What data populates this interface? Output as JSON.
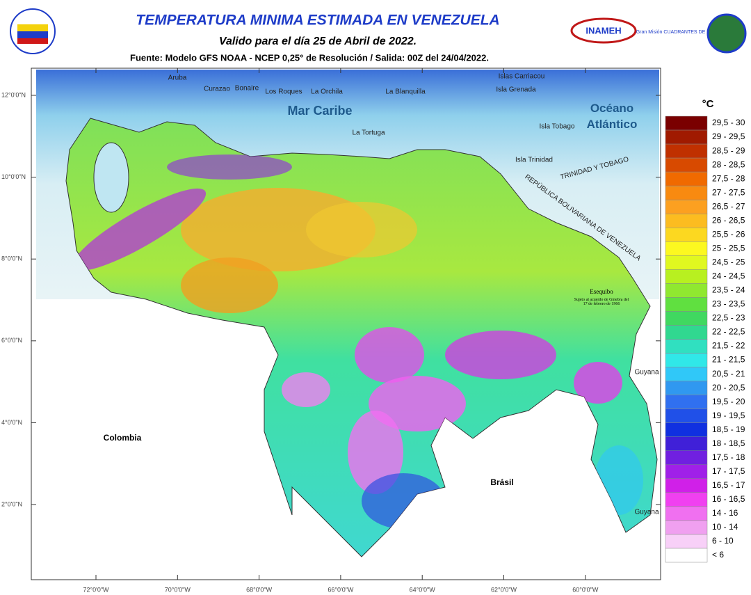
{
  "header": {
    "title": "TEMPERATURA MINIMA  ESTIMADA EN VENEZUELA",
    "subtitle": "Valido para el día 25 de Abril de 2022.",
    "source": "Fuente: Modelo GFS NOAA - NCEP 0,25° de Resolución / Salida: 00Z del 24/04/2022.",
    "logo_left": "INAMEH",
    "logo_right": "Gran Misión CUADRANTES DE PAZ"
  },
  "map": {
    "lat_ticks": [
      "12°0'0\"N",
      "10°0'0\"N",
      "8°0'0\"N",
      "6°0'0\"N",
      "4°0'0\"N",
      "2°0'0\"N"
    ],
    "lon_ticks": [
      "72°0'0\"W",
      "70°0'0\"W",
      "68°0'0\"W",
      "66°0'0\"W",
      "64°0'0\"W",
      "62°0'0\"W",
      "60°0'0\"W"
    ],
    "labels": {
      "aruba": "Aruba",
      "curazao": "Curazao",
      "bonaire": "Bonaire",
      "los_roques": "Los Roques",
      "la_orchila": "La Orchila",
      "la_blanquilla": "La Blanquilla",
      "carriacou": "Islas Carriacou",
      "grenada": "Isla Grenada",
      "mar_caribe": "Mar Caribe",
      "oceano": "Océano Atlántico",
      "tobago": "Isla Tobago",
      "trinidad": "Isla Trinidad",
      "tortuga": "La Tortuga",
      "tyt": "TRINIDAD Y TOBAGO",
      "rbv": "REPÚBLICA BOLIVARIANA DE VENEZUELA",
      "esequibo": "Esequibo",
      "esequibo_note": "Sujeto al acuerdo de Ginebra del 17 de febrero de 1966",
      "guyana1": "Guyana",
      "guyana2": "Guyana",
      "colombia": "Colombia",
      "brasil": "Brásil"
    }
  },
  "legend": {
    "unit": "°C",
    "items": [
      {
        "label": "29,5 - 30",
        "color": "#7a0000"
      },
      {
        "label": "29 - 29,5",
        "color": "#a01a00"
      },
      {
        "label": "28,5 - 29",
        "color": "#c03000"
      },
      {
        "label": "28 - 28,5",
        "color": "#d84a00"
      },
      {
        "label": "27,5 - 28",
        "color": "#f06a00"
      },
      {
        "label": "27 - 27,5",
        "color": "#f88a10"
      },
      {
        "label": "26,5 - 27",
        "color": "#fca020"
      },
      {
        "label": "26 - 26,5",
        "color": "#fcbc20"
      },
      {
        "label": "25,5 - 26",
        "color": "#fcd820"
      },
      {
        "label": "25 - 25,5",
        "color": "#fcf820"
      },
      {
        "label": "24,5 - 25",
        "color": "#e0f820"
      },
      {
        "label": "24 - 24,5",
        "color": "#b8f020"
      },
      {
        "label": "23,5 - 24",
        "color": "#90e830"
      },
      {
        "label": "23 - 23,5",
        "color": "#60e040"
      },
      {
        "label": "22,5 - 23",
        "color": "#40d860"
      },
      {
        "label": "22 - 22,5",
        "color": "#30d890"
      },
      {
        "label": "21,5 - 22",
        "color": "#30e0c0"
      },
      {
        "label": "21 - 21,5",
        "color": "#30e8e8"
      },
      {
        "label": "20,5 - 21",
        "color": "#30c8f8"
      },
      {
        "label": "20 - 20,5",
        "color": "#3098f0"
      },
      {
        "label": "19,5 - 20",
        "color": "#3070f0"
      },
      {
        "label": "19 - 19,5",
        "color": "#2050e8"
      },
      {
        "label": "18,5 - 19",
        "color": "#1030e0"
      },
      {
        "label": "18 - 18,5",
        "color": "#4020d8"
      },
      {
        "label": "17,5 - 18",
        "color": "#7020e0"
      },
      {
        "label": "17 - 17,5",
        "color": "#a020e8"
      },
      {
        "label": "16,5 - 17",
        "color": "#d020e8"
      },
      {
        "label": "16 - 16,5",
        "color": "#f040f0"
      },
      {
        "label": "14 - 16",
        "color": "#f070f0"
      },
      {
        "label": "10 - 14",
        "color": "#f0a0f0"
      },
      {
        "label": "6 - 10",
        "color": "#f8d0f8"
      },
      {
        "label": "< 6",
        "color": "#ffffff"
      }
    ]
  }
}
